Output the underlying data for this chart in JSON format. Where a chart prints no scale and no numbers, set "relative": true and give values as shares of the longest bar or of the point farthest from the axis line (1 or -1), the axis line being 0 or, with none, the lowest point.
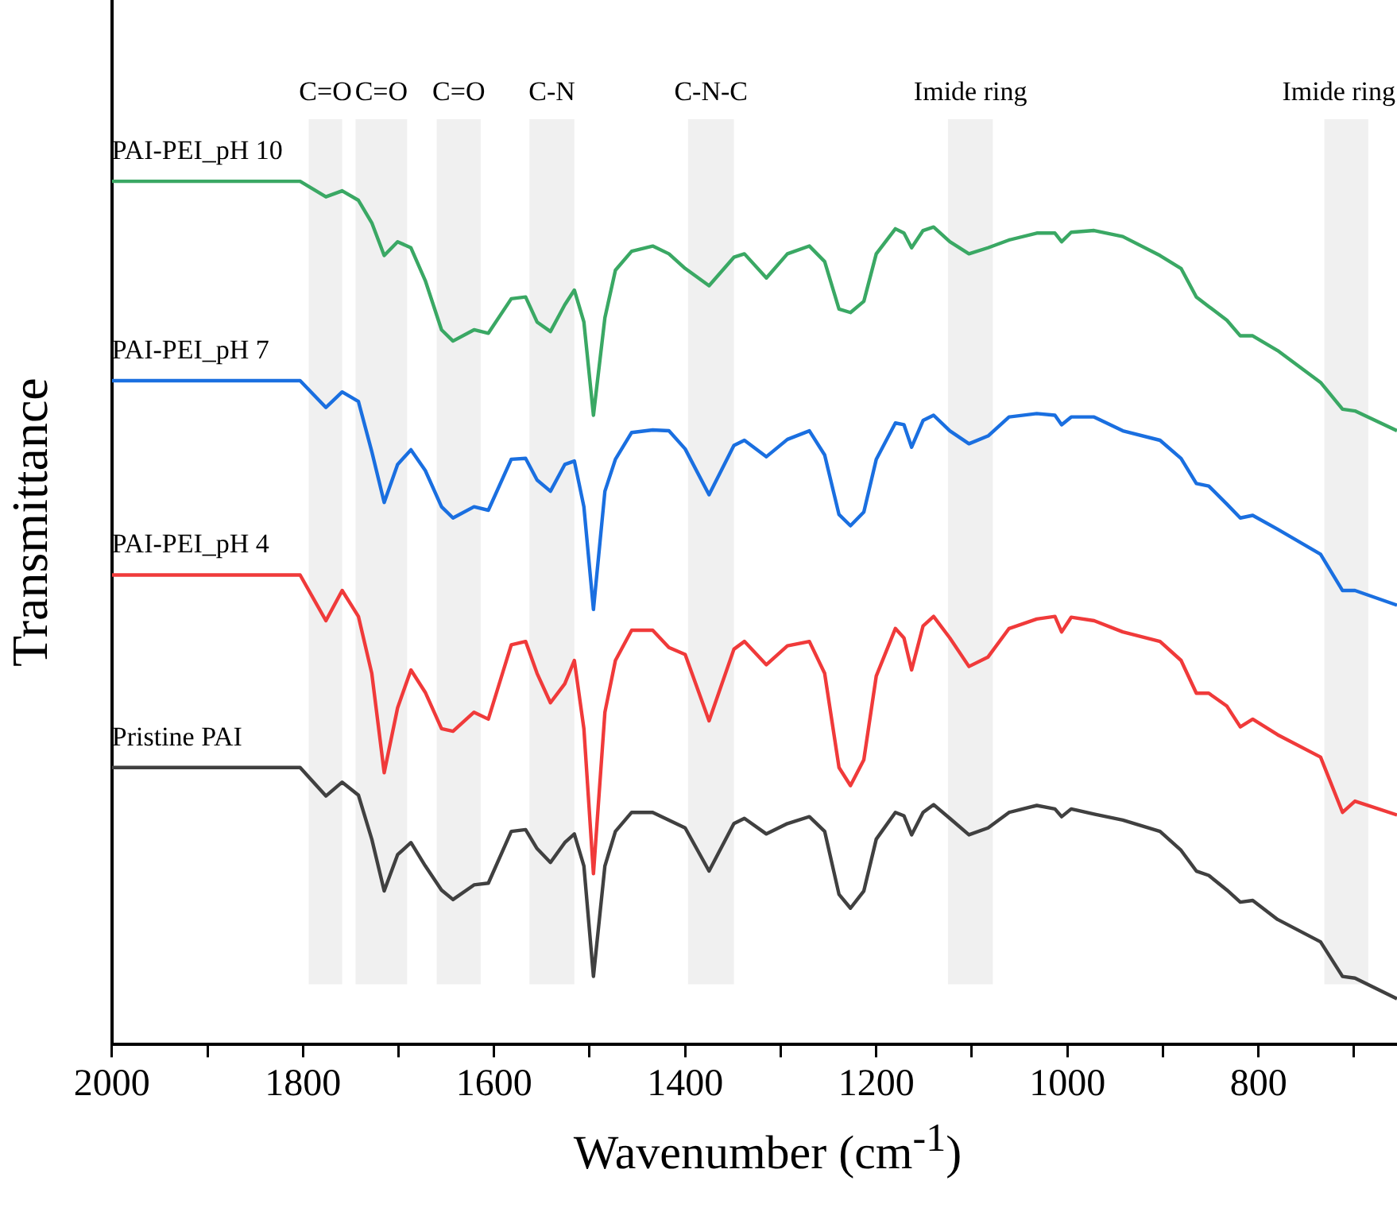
{
  "chart_data": {
    "type": "line",
    "relative": true,
    "xlabel": "Wavenumber (cm$^{-1}$)",
    "ylabel": "Transmittance",
    "xlim": [
      2000,
      655
    ],
    "xticks": [
      2000,
      {
        "value": 1900,
        "label": null
      },
      1800,
      {
        "value": 1700,
        "label": null
      },
      1600,
      {
        "value": 1500,
        "label": null
      },
      1400,
      {
        "value": 1300,
        "label": null
      },
      1200,
      {
        "value": 1100,
        "label": null
      },
      1000,
      {
        "value": 900,
        "label": null
      },
      800,
      {
        "value": 700,
        "label": null
      }
    ],
    "grid": false,
    "legend": false,
    "marker": "none",
    "line_style": "solid",
    "x": [
      2000,
      1803,
      1776,
      1759,
      1742,
      1728,
      1715,
      1701,
      1687,
      1672,
      1655,
      1643,
      1621,
      1606,
      1582,
      1567,
      1555,
      1541,
      1526,
      1516,
      1506,
      1496,
      1484,
      1473,
      1456,
      1434,
      1417,
      1400,
      1375,
      1349,
      1338,
      1315,
      1293,
      1270,
      1254,
      1239,
      1227,
      1213,
      1200,
      1180,
      1171,
      1163,
      1151,
      1140,
      1123,
      1103,
      1083,
      1061,
      1032,
      1013,
      1006,
      996,
      972,
      942,
      903,
      881,
      865,
      852,
      833,
      819,
      806,
      780,
      735,
      712,
      699,
      655
    ],
    "series": [
      {
        "name": "PAI-PEI_pH 10",
        "color": "#3aa864",
        "values": [
          1.0,
          1.0,
          0.982,
          0.989,
          0.978,
          0.952,
          0.914,
          0.93,
          0.923,
          0.885,
          0.828,
          0.815,
          0.828,
          0.824,
          0.864,
          0.866,
          0.837,
          0.826,
          0.857,
          0.874,
          0.837,
          0.729,
          0.842,
          0.897,
          0.919,
          0.925,
          0.916,
          0.899,
          0.879,
          0.912,
          0.916,
          0.888,
          0.916,
          0.925,
          0.907,
          0.852,
          0.848,
          0.861,
          0.916,
          0.945,
          0.94,
          0.923,
          0.943,
          0.947,
          0.93,
          0.916,
          0.923,
          0.932,
          0.94,
          0.94,
          0.93,
          0.941,
          0.943,
          0.936,
          0.914,
          0.899,
          0.866,
          0.855,
          0.839,
          0.821,
          0.821,
          0.804,
          0.767,
          0.736,
          0.734,
          0.711
        ]
      },
      {
        "name": "PAI-PEI_pH 7",
        "color": "#1a6fe0",
        "values": [
          0.769,
          0.769,
          0.738,
          0.756,
          0.745,
          0.687,
          0.628,
          0.672,
          0.689,
          0.665,
          0.623,
          0.61,
          0.623,
          0.619,
          0.678,
          0.679,
          0.654,
          0.641,
          0.672,
          0.676,
          0.623,
          0.504,
          0.641,
          0.678,
          0.709,
          0.712,
          0.711,
          0.69,
          0.637,
          0.694,
          0.7,
          0.681,
          0.701,
          0.711,
          0.683,
          0.614,
          0.601,
          0.617,
          0.678,
          0.72,
          0.718,
          0.692,
          0.723,
          0.729,
          0.711,
          0.696,
          0.705,
          0.727,
          0.731,
          0.729,
          0.718,
          0.727,
          0.727,
          0.711,
          0.7,
          0.679,
          0.65,
          0.647,
          0.626,
          0.61,
          0.613,
          0.597,
          0.568,
          0.526,
          0.526,
          0.509
        ]
      },
      {
        "name": "PAI-PEI_pH 4",
        "color": "#f03a3a",
        "values": [
          0.544,
          0.544,
          0.491,
          0.526,
          0.496,
          0.43,
          0.315,
          0.39,
          0.434,
          0.408,
          0.366,
          0.363,
          0.385,
          0.377,
          0.463,
          0.467,
          0.43,
          0.396,
          0.418,
          0.445,
          0.366,
          0.198,
          0.385,
          0.445,
          0.48,
          0.48,
          0.46,
          0.452,
          0.375,
          0.458,
          0.467,
          0.44,
          0.462,
          0.467,
          0.43,
          0.321,
          0.3,
          0.33,
          0.427,
          0.482,
          0.471,
          0.434,
          0.485,
          0.496,
          0.471,
          0.438,
          0.449,
          0.482,
          0.493,
          0.496,
          0.478,
          0.495,
          0.491,
          0.478,
          0.467,
          0.445,
          0.407,
          0.407,
          0.392,
          0.368,
          0.377,
          0.359,
          0.333,
          0.269,
          0.282,
          0.266
        ]
      },
      {
        "name": "Pristine PAI",
        "color": "#404040",
        "values": [
          0.321,
          0.321,
          0.288,
          0.304,
          0.289,
          0.238,
          0.178,
          0.22,
          0.234,
          0.207,
          0.179,
          0.168,
          0.185,
          0.187,
          0.247,
          0.249,
          0.227,
          0.211,
          0.234,
          0.244,
          0.207,
          0.079,
          0.207,
          0.247,
          0.269,
          0.269,
          0.26,
          0.251,
          0.201,
          0.256,
          0.262,
          0.244,
          0.256,
          0.264,
          0.247,
          0.174,
          0.158,
          0.178,
          0.238,
          0.269,
          0.265,
          0.243,
          0.269,
          0.278,
          0.262,
          0.243,
          0.251,
          0.269,
          0.277,
          0.273,
          0.264,
          0.273,
          0.267,
          0.26,
          0.247,
          0.225,
          0.201,
          0.196,
          0.179,
          0.165,
          0.167,
          0.145,
          0.119,
          0.079,
          0.077,
          0.053
        ]
      }
    ],
    "bands": [
      {
        "axis": "x",
        "from": 1794,
        "to": 1759,
        "label": "C=O",
        "color": "#f0f0f0"
      },
      {
        "axis": "x",
        "from": 1745,
        "to": 1691,
        "label": "C=O",
        "color": "#f0f0f0"
      },
      {
        "axis": "x",
        "from": 1660,
        "to": 1614,
        "label": "C=O",
        "color": "#f0f0f0"
      },
      {
        "axis": "x",
        "from": 1563,
        "to": 1516,
        "label": "C-N",
        "color": "#f0f0f0"
      },
      {
        "axis": "x",
        "from": 1397,
        "to": 1349,
        "label": "C-N-C",
        "color": "#f0f0f0"
      },
      {
        "axis": "x",
        "from": 1125,
        "to": 1078,
        "label": "Imide ring",
        "color": "#f0f0f0"
      },
      {
        "axis": "x",
        "from": 731,
        "to": 685,
        "label": "Imide ring",
        "color": "#f0f0f0"
      }
    ]
  }
}
